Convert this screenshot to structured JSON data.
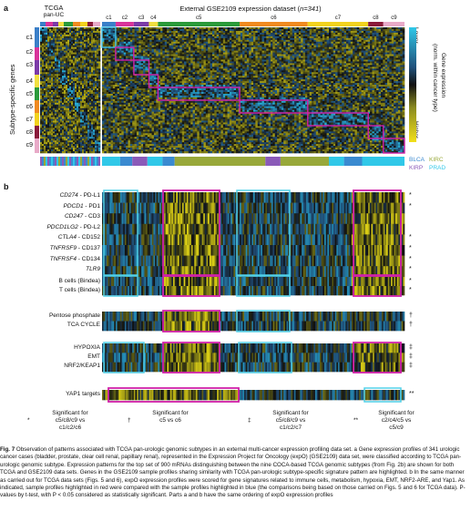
{
  "panel_a": {
    "letter": "a",
    "tcga_title": "TCGA",
    "tcga_subtitle": "pan-UC",
    "external_title_prefix": "External GSE2109 expression dataset (",
    "external_title_n": "n=341",
    "external_title_suffix": ")",
    "y_axis_label": "Subtype-specific genes",
    "row_labels": [
      "c1",
      "c2",
      "c3",
      "c4",
      "c5",
      "c6",
      "c7",
      "c8",
      "c9"
    ],
    "column_clusters": [
      "c1",
      "c2",
      "c3",
      "c4",
      "c5",
      "c6",
      "c7",
      "c8",
      "c9"
    ],
    "cluster_colors": [
      "#3a7fc8",
      "#d8339a",
      "#7a3aa8",
      "#f0e040",
      "#2a9a3a",
      "#f08a20",
      "#f2d21e",
      "#8a1a3a",
      "#e8aac8"
    ],
    "colorbar_top": "Lower",
    "colorbar_bottom": "Higher",
    "colorbar_title_1": "Gene expression",
    "colorbar_title_2": "(norm. within cancer type)",
    "cancer_types": [
      {
        "label": "BLCA",
        "color": "#3a8ad0"
      },
      {
        "label": "KIRC",
        "color": "#98a83a"
      },
      {
        "label": "KIRP",
        "color": "#8a5ab8"
      },
      {
        "label": "PRAD",
        "color": "#30c8e8"
      }
    ]
  },
  "panel_b": {
    "letter": "b",
    "genes": [
      {
        "name": "CD274",
        "protein": "PD-L1",
        "mark": "*"
      },
      {
        "name": "PDCD1",
        "protein": "PD1",
        "mark": "*"
      },
      {
        "name": "CD247",
        "protein": "CD3",
        "mark": ""
      },
      {
        "name": "PDCD1LG2",
        "protein": "PD-L2",
        "mark": ""
      },
      {
        "name": "CTLA4",
        "protein": "CD152",
        "mark": "*"
      },
      {
        "name": "TNFRSF9",
        "protein": "CD137",
        "mark": "*"
      },
      {
        "name": "TNFRSF4",
        "protein": "CD134",
        "mark": "*"
      },
      {
        "name": "TLR9",
        "protein": "",
        "mark": "*"
      }
    ],
    "cell_groups": [
      {
        "label": "B cells (Bindea)",
        "mark": "*"
      },
      {
        "label": "T cells (Bindea)",
        "mark": "*"
      }
    ],
    "metabolic": [
      {
        "label": "Pentose phosphate",
        "mark": "†"
      },
      {
        "label": "TCA CYCLE",
        "mark": "†"
      }
    ],
    "signatures": [
      {
        "label": "HYPOXIA",
        "mark": "‡"
      },
      {
        "label": "EMT",
        "mark": "‡"
      },
      {
        "label": "NRF2/KEAP1",
        "mark": "‡"
      }
    ],
    "yap": {
      "label": "YAP1 targets",
      "mark": "**"
    },
    "sig_notes": [
      {
        "sym": "*",
        "l1": "Significant for",
        "l2": "c5/c8/c9 vs",
        "l3": "c1/c2/c6"
      },
      {
        "sym": "†",
        "l1": "Significant for",
        "l2": "c5 vs c6",
        "l3": ""
      },
      {
        "sym": "‡",
        "l1": "Significant for",
        "l2": "c5/c8/c9 vs",
        "l3": "c1/c2/c7"
      },
      {
        "sym": "**",
        "l1": "Significant for",
        "l2": "c2/c4/c5 vs",
        "l3": "c5/c9"
      }
    ]
  },
  "caption": {
    "label": "Fig. 7",
    "text": " Observation of patterns associated with TCGA pan-urologic genomic subtypes in an external multi-cancer expression profiling data set. a Gene expression profiles of 341 urologic cancer cases (bladder, prostate, clear cell renal, papillary renal), represented in the Expression Project for Oncology (expO) (GSE2109) data set, were classified according to TCGA pan-urologic genomic subtype. Expression patterns for the top set of 900 mRNAs distinguishing between the nine COCA-based TCGA genomic subtypes (from Fig. 2b) are shown for both TCGA and GSE2109 data sets. Genes in the GSE2109 sample profiles sharing similarity with TCGA pan-urologic subtype-specific signature pattern are highlighted. b In the same manner as carried out for TCGA data sets (Figs. 5 and 6), expO expression profiles were scored for gene signatures related to immune cells, metabolism, hypoxia, EMT, NRF2-ARE, and Yap1. As indicated, sample profiles highlighted in red were compared with the sample profiles highlighted in blue (the comparisons being based on those carried on Figs. 5 and 6 for TCGA data). P-values by t-test, with P < 0.05 considered as statistically significant. Parts a and b have the same ordering of expO expression profiles"
  }
}
